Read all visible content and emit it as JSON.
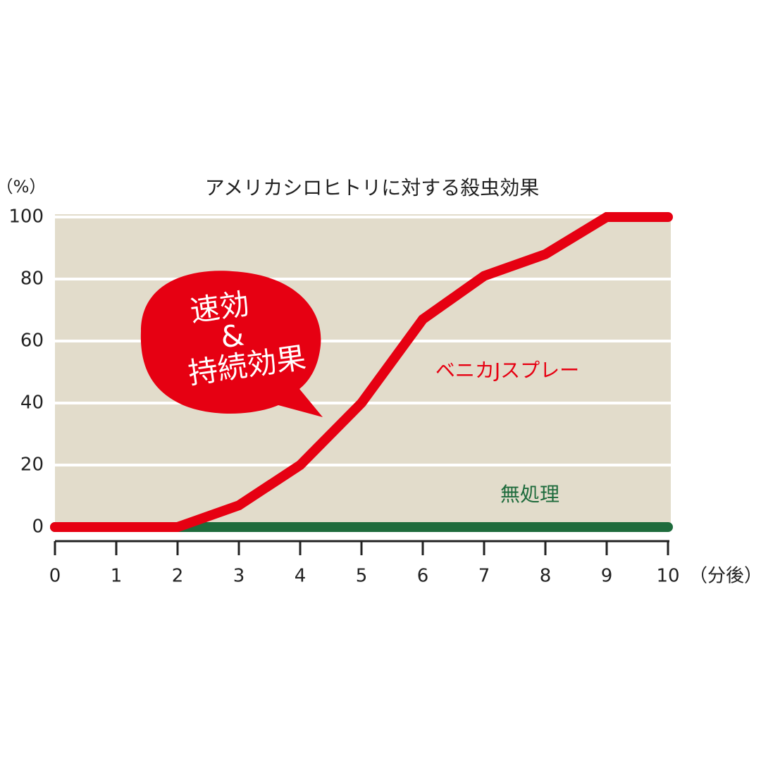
{
  "chart_data": {
    "type": "line",
    "title": "アメリカシロヒトリに対する殺虫効果",
    "y_label": "（%）",
    "x_label": "（分後）",
    "x": [
      0,
      1,
      2,
      3,
      4,
      5,
      6,
      7,
      8,
      9,
      10
    ],
    "series": [
      {
        "name": "ベニカJスプレー",
        "color": "#e60012",
        "values": [
          0,
          0,
          0,
          7,
          20,
          40,
          67,
          81,
          88,
          100,
          100
        ]
      },
      {
        "name": "無処理",
        "color": "#1e6b3c",
        "values": [
          0,
          0,
          0,
          0,
          0,
          0,
          0,
          0,
          0,
          0,
          0
        ]
      }
    ],
    "xlim": [
      0,
      10
    ],
    "ylim": [
      0,
      100
    ],
    "xticks": [
      0,
      1,
      2,
      3,
      4,
      5,
      6,
      7,
      8,
      9,
      10
    ],
    "yticks": [
      0,
      20,
      40,
      60,
      80,
      100
    ],
    "grid": true,
    "background": "#e2dccb",
    "annotations": [
      "速効",
      "&",
      "持続効果"
    ]
  }
}
